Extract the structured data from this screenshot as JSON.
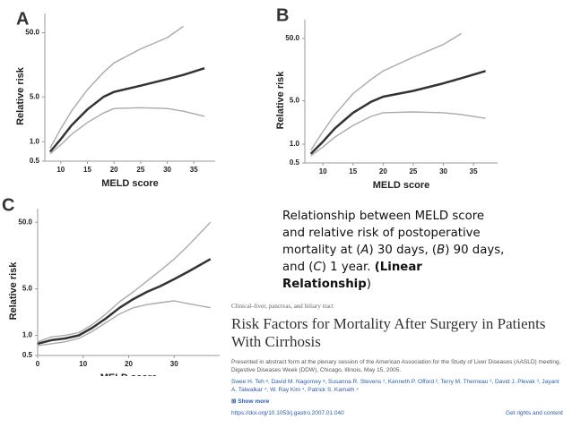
{
  "chart_data": [
    {
      "type": "line",
      "panel": "A",
      "xlabel": "MELD score",
      "ylabel": "Relative risk",
      "yscale": "log",
      "xlim": [
        7,
        39
      ],
      "xticks": [
        10,
        15,
        20,
        25,
        30,
        35
      ],
      "ylim": [
        0.5,
        100
      ],
      "yticks": [
        0.5,
        {
          "value": 1,
          "label": "1.0"
        },
        {
          "value": 5,
          "label": "5.0"
        },
        {
          "value": 50,
          "label": "50.0"
        }
      ],
      "x": [
        8,
        10,
        12,
        15,
        18,
        20,
        25,
        30,
        33,
        37
      ],
      "series": [
        {
          "color": "#aaaaaa",
          "values": [
            0.8,
            1.6,
            3,
            6.5,
            12,
            17,
            28,
            42,
            63,
            null
          ]
        },
        {
          "color": "#333333",
          "values": [
            0.7,
            1.1,
            1.8,
            3.2,
            5,
            6,
            7.5,
            9.5,
            11,
            14
          ]
        },
        {
          "color": "#aaaaaa",
          "values": [
            0.65,
            0.9,
            1.3,
            2,
            2.8,
            3.3,
            3.4,
            3.3,
            3,
            2.5
          ]
        }
      ]
    },
    {
      "type": "line",
      "panel": "B",
      "xlabel": "MELD score",
      "ylabel": "Relative risk",
      "yscale": "log",
      "xlim": [
        7,
        39
      ],
      "xticks": [
        10,
        15,
        20,
        25,
        30,
        35
      ],
      "ylim": [
        0.5,
        100
      ],
      "yticks": [
        0.5,
        {
          "value": 1,
          "label": "1.0"
        },
        {
          "value": 5,
          "label": "5.0"
        },
        {
          "value": 50,
          "label": "50.0"
        }
      ],
      "x": [
        8,
        10,
        12,
        15,
        18,
        20,
        25,
        30,
        33,
        37
      ],
      "series": [
        {
          "color": "#aaaaaa",
          "values": [
            0.8,
            1.6,
            3,
            6.5,
            11,
            15,
            25,
            40,
            60,
            null
          ]
        },
        {
          "color": "#333333",
          "values": [
            0.7,
            1.1,
            1.8,
            3.2,
            4.8,
            5.8,
            7.2,
            9.5,
            11.5,
            15
          ]
        },
        {
          "color": "#aaaaaa",
          "values": [
            0.65,
            0.9,
            1.3,
            2,
            2.8,
            3.2,
            3.3,
            3.2,
            3,
            2.6
          ]
        }
      ]
    },
    {
      "type": "line",
      "panel": "C",
      "xlabel": "MELD score",
      "ylabel": "Relative risk",
      "yscale": "log",
      "xlim": [
        0,
        40
      ],
      "xticks": [
        0,
        10,
        20,
        30
      ],
      "ylim": [
        0.5,
        80
      ],
      "yticks": [
        0.5,
        {
          "value": 1,
          "label": "1.0"
        },
        {
          "value": 5,
          "label": "5.0"
        },
        {
          "value": 50,
          "label": "50.0"
        }
      ],
      "x": [
        0,
        3,
        6,
        9,
        12,
        15,
        18,
        21,
        24,
        27,
        30,
        33,
        38
      ],
      "series": [
        {
          "color": "#aaaaaa",
          "values": [
            0.8,
            0.95,
            1.0,
            1.1,
            1.45,
            2.1,
            3.2,
            4.5,
            6.5,
            9.5,
            14,
            22,
            50
          ]
        },
        {
          "color": "#333333",
          "values": [
            0.75,
            0.85,
            0.9,
            1.0,
            1.3,
            1.8,
            2.6,
            3.5,
            4.5,
            5.5,
            7,
            9,
            14
          ]
        },
        {
          "color": "#aaaaaa",
          "values": [
            0.7,
            0.75,
            0.8,
            0.9,
            1.15,
            1.55,
            2.1,
            2.6,
            2.9,
            3.1,
            3.3,
            3.0,
            2.6
          ]
        }
      ]
    }
  ],
  "caption": [
    "Relationship between MELD score and relative risk of postoperative mortality at (",
    "A",
    ") 30 days, (",
    "B",
    ") 90 days, and (",
    "C",
    ") 1 year. ",
    "(Linear Relationship",
    ")"
  ],
  "paper": {
    "category": "Clinical–liver, pancreas, and biliary tract",
    "title": "Risk Factors for Mortality After Surgery in Patients With Cirrhosis",
    "note": "Presented in abstract form at the plenary session of the American Association for the Study of Liver Diseases (AASLD) meeting, Digestive Diseases Week (DDW), Chicago, Illinois, May 15, 2005.",
    "authors": "Swee H. Teh ᵃ, David M. Nagorney ᵃ, Susanna R. Stevens ², Kenneth P. Offord ², Terry M. Therneau ², David J. Plevak ³, Jayant A. Talwalkar ⁴, W. Ray Kim ⁴, Patrick S. Kamath ⁴",
    "show_more": "⊞ Show more",
    "doi": "https://doi.org/10.1053/j.gastro.2007.01.040",
    "rights": "Get rights and content"
  }
}
